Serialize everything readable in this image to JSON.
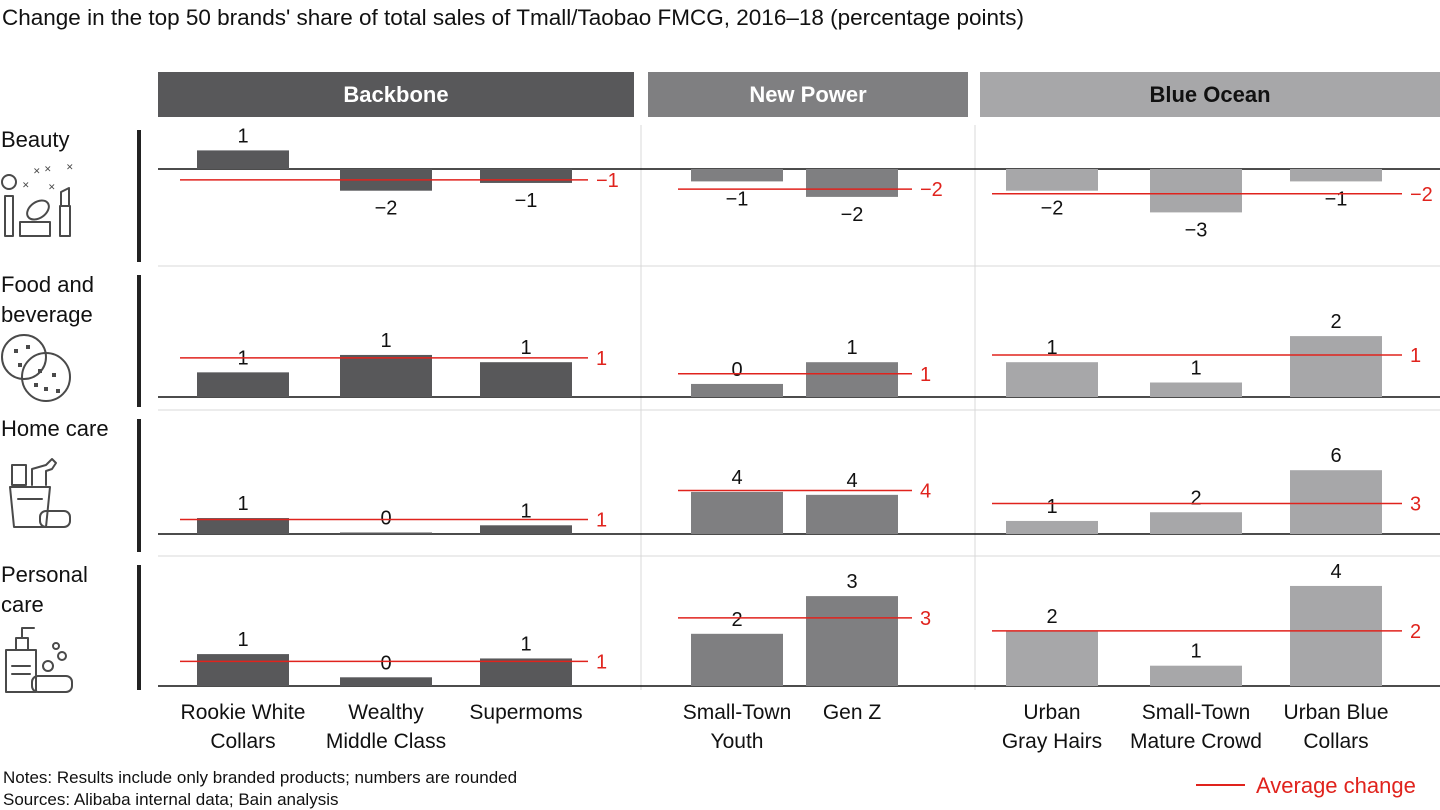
{
  "title": "Change in the top 50 brands' share of total sales of Tmall/Taobao FMCG, 2016–18 (percentage points)",
  "notes": "Notes: Results include only branded products; numbers are rounded",
  "sources": "Sources: Alibaba internal data; Bain analysis",
  "legend_label": "Average change",
  "colors": {
    "backbone": "#58585a",
    "new_power": "#7f7f81",
    "blue_ocean": "#a7a7a9",
    "average": "#e0231d",
    "value_text": "#111111",
    "header_text_light": "#ffffff",
    "header_text_dark": "#111111"
  },
  "chart_data": {
    "type": "bar",
    "groups": [
      {
        "name": "Backbone",
        "segments": [
          {
            "id": "rwc",
            "label": [
              "Rookie White",
              "Collars"
            ]
          },
          {
            "id": "wmc",
            "label": [
              "Wealthy",
              "Middle Class"
            ]
          },
          {
            "id": "sm",
            "label": [
              "Supermoms"
            ]
          }
        ]
      },
      {
        "name": "New Power",
        "segments": [
          {
            "id": "sty",
            "label": [
              "Small-Town",
              "Youth"
            ]
          },
          {
            "id": "gz",
            "label": [
              "Gen Z"
            ]
          }
        ]
      },
      {
        "name": "Blue Ocean",
        "segments": [
          {
            "id": "ugh",
            "label": [
              "Urban",
              "Gray Hairs"
            ]
          },
          {
            "id": "stmc",
            "label": [
              "Small-Town",
              "Mature Crowd"
            ]
          },
          {
            "id": "ubc",
            "label": [
              "Urban Blue",
              "Collars"
            ]
          }
        ]
      }
    ],
    "rows": [
      {
        "category": [
          "Beauty"
        ],
        "icon": "beauty-icon",
        "values": [
          {
            "v": 0.6,
            "label": "1"
          },
          {
            "v": -0.7,
            "label": "−2"
          },
          {
            "v": -0.45,
            "label": "−1"
          },
          {
            "v": -0.4,
            "label": "−1"
          },
          {
            "v": -0.9,
            "label": "−2"
          },
          {
            "v": -0.7,
            "label": "−2"
          },
          {
            "v": -1.4,
            "label": "−3"
          },
          {
            "v": -0.4,
            "label": "−1"
          }
        ],
        "averages": [
          {
            "v": -0.35,
            "label": "−1"
          },
          {
            "v": -0.65,
            "label": "−2"
          },
          {
            "v": -0.8,
            "label": "−2"
          }
        ]
      },
      {
        "category": [
          "Food and",
          "beverage"
        ],
        "icon": "cookie-icon",
        "values": [
          {
            "v": 0.85,
            "label": "1"
          },
          {
            "v": 1.45,
            "label": "1"
          },
          {
            "v": 1.2,
            "label": "1"
          },
          {
            "v": 0.45,
            "label": "0"
          },
          {
            "v": 1.2,
            "label": "1"
          },
          {
            "v": 1.2,
            "label": "1"
          },
          {
            "v": 0.5,
            "label": "1"
          },
          {
            "v": 2.1,
            "label": "2"
          }
        ],
        "averages": [
          {
            "v": 1.35,
            "label": "1"
          },
          {
            "v": 0.8,
            "label": "1"
          },
          {
            "v": 1.45,
            "label": "1"
          }
        ]
      },
      {
        "category": [
          "Home care"
        ],
        "icon": "cleaning-icon",
        "values": [
          {
            "v": 0.55,
            "label": "1"
          },
          {
            "v": 0.05,
            "label": "0"
          },
          {
            "v": 0.3,
            "label": "1"
          },
          {
            "v": 1.45,
            "label": "4"
          },
          {
            "v": 1.35,
            "label": "4"
          },
          {
            "v": 0.45,
            "label": "1"
          },
          {
            "v": 0.75,
            "label": "2"
          },
          {
            "v": 2.2,
            "label": "6"
          }
        ],
        "averages": [
          {
            "v": 0.5,
            "label": "1"
          },
          {
            "v": 1.5,
            "label": "4"
          },
          {
            "v": 1.05,
            "label": "3"
          }
        ]
      },
      {
        "category": [
          "Personal",
          "care"
        ],
        "icon": "soap-icon",
        "values": [
          {
            "v": 1.1,
            "label": "1"
          },
          {
            "v": 0.3,
            "label": "0"
          },
          {
            "v": 0.95,
            "label": "1"
          },
          {
            "v": 1.8,
            "label": "2"
          },
          {
            "v": 3.1,
            "label": "3"
          },
          {
            "v": 1.9,
            "label": "2"
          },
          {
            "v": 0.7,
            "label": "1"
          },
          {
            "v": 3.45,
            "label": "4"
          }
        ],
        "averages": [
          {
            "v": 0.85,
            "label": "1"
          },
          {
            "v": 2.35,
            "label": "3"
          },
          {
            "v": 1.9,
            "label": "2"
          }
        ]
      }
    ],
    "legend": [
      "Average change"
    ],
    "grid": false
  }
}
